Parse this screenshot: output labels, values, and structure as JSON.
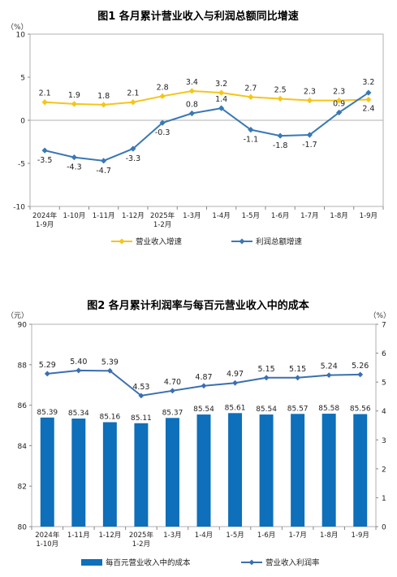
{
  "chart_data": [
    {
      "type": "line",
      "title": "图1 各月累计营业收入与利润总额同比增速",
      "ylabel": "（%）",
      "ylim": [
        -10,
        10
      ],
      "yticks": [
        -10,
        -5,
        0,
        5,
        10
      ],
      "grid": false,
      "legend": "bottom",
      "categories": [
        [
          "2024年",
          "1-9月"
        ],
        [
          "1-10月"
        ],
        [
          "1-11月"
        ],
        [
          "1-12月"
        ],
        [
          "2025年",
          "1-2月"
        ],
        [
          "1-3月"
        ],
        [
          "1-4月"
        ],
        [
          "1-5月"
        ],
        [
          "1-6月"
        ],
        [
          "1-7月"
        ],
        [
          "1-8月"
        ],
        [
          "1-9月"
        ]
      ],
      "series": [
        {
          "name": "营业收入增速",
          "color": "#f5c518",
          "values": [
            2.1,
            1.9,
            1.8,
            2.1,
            2.8,
            3.4,
            3.2,
            2.7,
            2.5,
            2.3,
            2.3,
            2.4
          ],
          "labels": [
            "2.1",
            "1.9",
            "1.8",
            "2.1",
            "2.8",
            "3.4",
            "3.2",
            "2.7",
            "2.5",
            "2.3",
            "2.3",
            "2.4"
          ]
        },
        {
          "name": "利润总额增速",
          "color": "#3a78b5",
          "values": [
            -3.5,
            -4.3,
            -4.7,
            -3.3,
            -0.3,
            0.8,
            1.4,
            -1.1,
            -1.8,
            -1.7,
            0.9,
            3.2
          ],
          "labels": [
            "-3.5",
            "-4.3",
            "-4.7",
            "-3.3",
            "-0.3",
            "0.8",
            "1.4",
            "-1.1",
            "-1.8",
            "-1.7",
            "0.9",
            "3.2"
          ]
        }
      ]
    },
    {
      "type": "bar",
      "title": "图2 各月累计利润率与每百元营业收入中的成本",
      "ylabel_left": "（元）",
      "ylabel_right": "（%）",
      "ylim_left": [
        80,
        90
      ],
      "yticks_left": [
        80,
        82,
        84,
        86,
        88,
        90
      ],
      "ylim_right": [
        0,
        7
      ],
      "yticks_right": [
        0,
        1,
        2,
        3,
        4,
        5,
        6,
        7
      ],
      "grid": false,
      "legend": "bottom",
      "categories": [
        [
          "2024年",
          "1-10月"
        ],
        [
          "1-11月"
        ],
        [
          "1-12月"
        ],
        [
          "2025年",
          "1-2月"
        ],
        [
          "1-3月"
        ],
        [
          "1-4月"
        ],
        [
          "1-5月"
        ],
        [
          "1-6月"
        ],
        [
          "1-7月"
        ],
        [
          "1-8月"
        ],
        [
          "1-9月"
        ]
      ],
      "series": [
        {
          "name": "每百元营业收入中的成本",
          "kind": "bar",
          "axis": "left",
          "color": "#0e6fba",
          "values": [
            85.39,
            85.34,
            85.16,
            85.11,
            85.37,
            85.54,
            85.61,
            85.54,
            85.57,
            85.58,
            85.56
          ],
          "labels": [
            "85.39",
            "85.34",
            "85.16",
            "85.11",
            "85.37",
            "85.54",
            "85.61",
            "85.54",
            "85.57",
            "85.58",
            "85.56"
          ]
        },
        {
          "name": "营业收入利润率",
          "kind": "line",
          "axis": "right",
          "color": "#3a6fb0",
          "values": [
            5.29,
            5.4,
            5.39,
            4.53,
            4.7,
            4.87,
            4.97,
            5.15,
            5.15,
            5.24,
            5.26
          ],
          "labels": [
            "5.29",
            "5.40",
            "5.39",
            "4.53",
            "4.70",
            "4.87",
            "4.97",
            "5.15",
            "5.15",
            "5.24",
            "5.26"
          ]
        }
      ]
    }
  ]
}
